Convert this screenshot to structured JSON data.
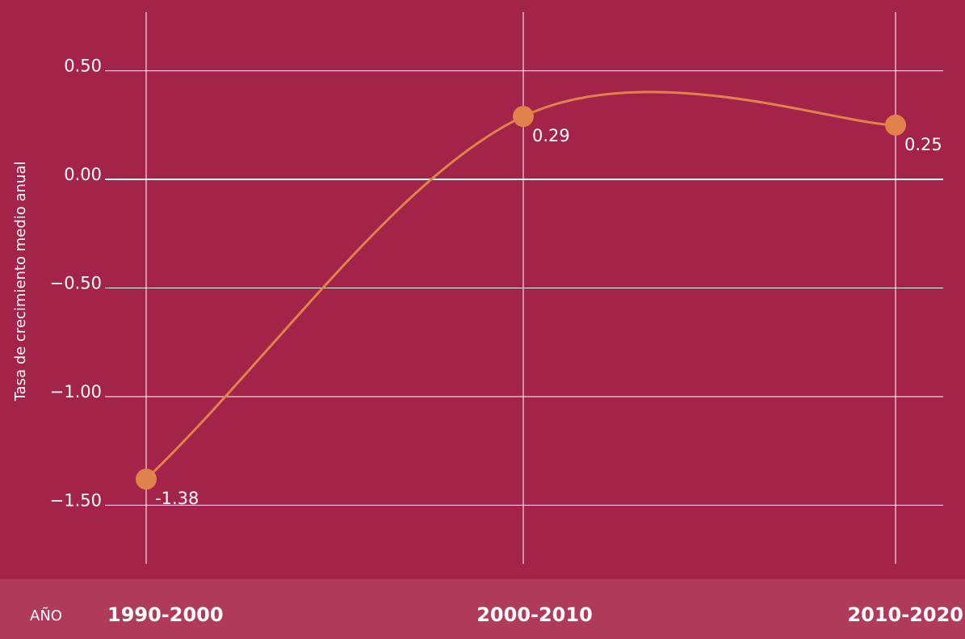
{
  "chart_data": {
    "type": "line",
    "title": "",
    "xlabel": "AÑO",
    "ylabel": "Tasa de crecimiento medio anual",
    "categories": [
      "1990-2000",
      "2000-2010",
      "2010-2020"
    ],
    "series": [
      {
        "values": [
          -1.38,
          0.29,
          0.25
        ],
        "data_labels": [
          "-1.38",
          "0.29",
          "0.25"
        ]
      }
    ],
    "ylim": [
      -1.77,
      0.77
    ],
    "yticks": [
      0.5,
      0.0,
      -0.5,
      -1.0,
      -1.5
    ],
    "ytick_labels": [
      "0.50",
      "0.00",
      "−0.50",
      "−1.00",
      "−1.50"
    ],
    "grid": true,
    "line_shape": "smooth"
  },
  "colors": {
    "background": "#a42348",
    "axis_band": "#af3a59",
    "grid": "#ffffff",
    "series": "#e0824c",
    "text": "#ffffff"
  }
}
